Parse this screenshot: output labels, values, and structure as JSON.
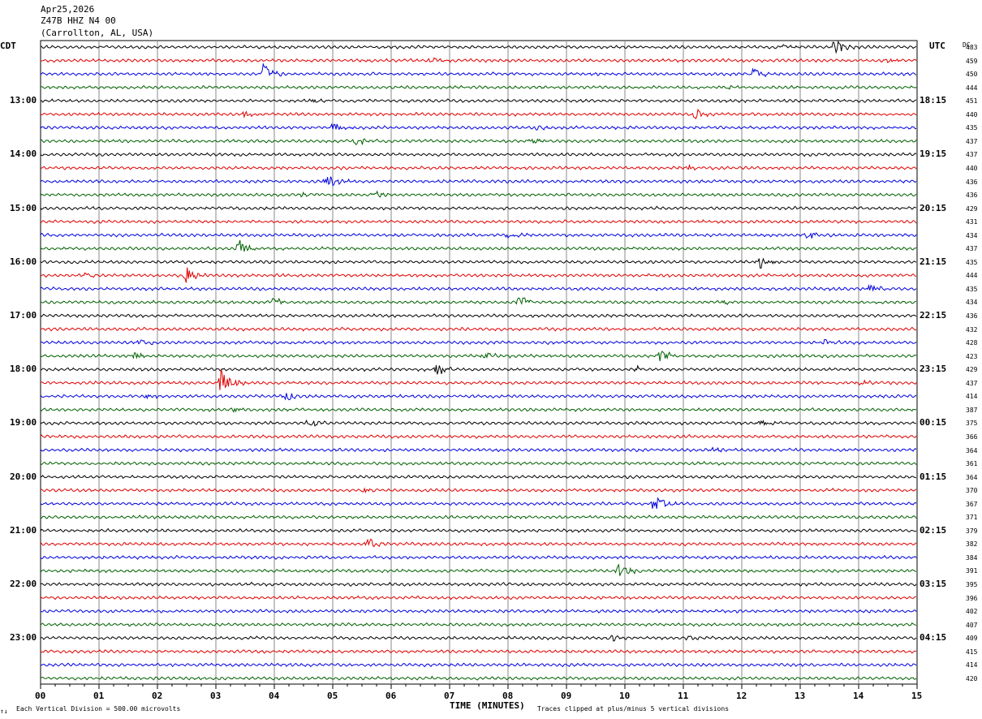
{
  "header": {
    "date": "Apr25,2026",
    "station": "Z47B HHZ N4 00",
    "location": "(Carrollton, AL, USA)"
  },
  "left_zone": "CDT",
  "right_zone": "UTC",
  "dc_header": "DC",
  "footer": {
    "scale": "Each Vertical Division =  500.00 microvolts",
    "xlabel": "TIME (MINUTES)",
    "clip": "Traces clipped at plus/minus 5 vertical divisions",
    "corner_mark": "↑↓"
  },
  "colors": [
    "#000000",
    "#e00000",
    "#0000e0",
    "#006000"
  ],
  "chart_data": {
    "type": "line",
    "title": "",
    "xlabel": "TIME (MINUTES)",
    "ylabel": "",
    "x_ticks": [
      "00",
      "01",
      "02",
      "03",
      "04",
      "05",
      "06",
      "07",
      "08",
      "09",
      "10",
      "11",
      "12",
      "13",
      "14",
      "15"
    ],
    "xlim": [
      0,
      15
    ],
    "grid": true,
    "left_hour_labels": [
      "13:00",
      "14:00",
      "15:00",
      "16:00",
      "17:00",
      "18:00",
      "19:00",
      "20:00",
      "21:00",
      "22:00",
      "23:00"
    ],
    "right_hour_labels": [
      "18:15",
      "19:15",
      "20:15",
      "21:15",
      "22:15",
      "23:15",
      "00:15",
      "01:15",
      "02:15",
      "03:15",
      "04:15"
    ],
    "hour_label_first_trace": 4,
    "dc_values": [
      483,
      459,
      450,
      444,
      451,
      440,
      435,
      437,
      437,
      440,
      436,
      436,
      429,
      431,
      434,
      437,
      435,
      444,
      435,
      434,
      436,
      432,
      428,
      423,
      429,
      437,
      414,
      387,
      375,
      366,
      364,
      361,
      364,
      370,
      367,
      371,
      379,
      382,
      384,
      391,
      395,
      396,
      402,
      407,
      409,
      415,
      414,
      420
    ],
    "events": [
      {
        "trace": 0,
        "minute": 13.6,
        "amp": 2.2
      },
      {
        "trace": 0,
        "minute": 12.7,
        "amp": 1.0
      },
      {
        "trace": 1,
        "minute": 6.7,
        "amp": 1.0
      },
      {
        "trace": 1,
        "minute": 14.5,
        "amp": 1.0
      },
      {
        "trace": 2,
        "minute": 3.8,
        "amp": 4.0
      },
      {
        "trace": 2,
        "minute": 12.2,
        "amp": 2.2
      },
      {
        "trace": 3,
        "minute": 11.7,
        "amp": 0.8
      },
      {
        "trace": 4,
        "minute": 4.7,
        "amp": 1.5
      },
      {
        "trace": 5,
        "minute": 3.5,
        "amp": 1.0
      },
      {
        "trace": 5,
        "minute": 11.2,
        "amp": 1.5
      },
      {
        "trace": 6,
        "minute": 5.0,
        "amp": 1.6
      },
      {
        "trace": 6,
        "minute": 8.5,
        "amp": 0.8
      },
      {
        "trace": 7,
        "minute": 5.4,
        "amp": 1.5
      },
      {
        "trace": 7,
        "minute": 8.4,
        "amp": 1.3
      },
      {
        "trace": 9,
        "minute": 11.1,
        "amp": 1.0
      },
      {
        "trace": 10,
        "minute": 4.9,
        "amp": 2.6
      },
      {
        "trace": 11,
        "minute": 4.5,
        "amp": 1.0
      },
      {
        "trace": 11,
        "minute": 5.7,
        "amp": 1.2
      },
      {
        "trace": 14,
        "minute": 8.0,
        "amp": 1.0
      },
      {
        "trace": 14,
        "minute": 13.1,
        "amp": 1.8
      },
      {
        "trace": 15,
        "minute": 3.4,
        "amp": 2.8
      },
      {
        "trace": 16,
        "minute": 12.3,
        "amp": 2.2
      },
      {
        "trace": 17,
        "minute": 2.5,
        "amp": 3.0
      },
      {
        "trace": 17,
        "minute": 0.8,
        "amp": 0.8
      },
      {
        "trace": 18,
        "minute": 14.2,
        "amp": 1.2
      },
      {
        "trace": 19,
        "minute": 4.0,
        "amp": 1.5
      },
      {
        "trace": 19,
        "minute": 8.2,
        "amp": 2.2
      },
      {
        "trace": 19,
        "minute": 11.7,
        "amp": 0.8
      },
      {
        "trace": 22,
        "minute": 13.4,
        "amp": 1.2
      },
      {
        "trace": 22,
        "minute": 1.7,
        "amp": 1.0
      },
      {
        "trace": 23,
        "minute": 1.6,
        "amp": 1.0
      },
      {
        "trace": 23,
        "minute": 7.6,
        "amp": 1.3
      },
      {
        "trace": 23,
        "minute": 10.6,
        "amp": 1.8
      },
      {
        "trace": 24,
        "minute": 6.8,
        "amp": 2.2
      },
      {
        "trace": 24,
        "minute": 10.2,
        "amp": 1.0
      },
      {
        "trace": 25,
        "minute": 3.1,
        "amp": 5.0
      },
      {
        "trace": 25,
        "minute": 14.0,
        "amp": 1.0
      },
      {
        "trace": 26,
        "minute": 1.8,
        "amp": 1.0
      },
      {
        "trace": 26,
        "minute": 4.2,
        "amp": 1.3
      },
      {
        "trace": 27,
        "minute": 3.3,
        "amp": 0.8
      },
      {
        "trace": 28,
        "minute": 4.6,
        "amp": 1.2
      },
      {
        "trace": 28,
        "minute": 12.3,
        "amp": 1.4
      },
      {
        "trace": 30,
        "minute": 11.5,
        "amp": 1.0
      },
      {
        "trace": 33,
        "minute": 5.5,
        "amp": 1.2
      },
      {
        "trace": 34,
        "minute": 10.5,
        "amp": 2.8
      },
      {
        "trace": 37,
        "minute": 5.6,
        "amp": 2.0
      },
      {
        "trace": 39,
        "minute": 9.9,
        "amp": 2.2
      },
      {
        "trace": 44,
        "minute": 9.8,
        "amp": 1.0
      },
      {
        "trace": 44,
        "minute": 11.1,
        "amp": 0.8
      }
    ]
  }
}
